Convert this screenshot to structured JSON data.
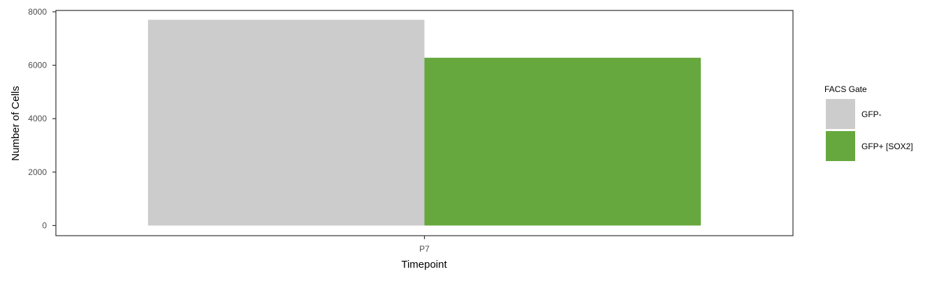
{
  "chart_data": {
    "type": "bar",
    "categories": [
      "P7"
    ],
    "series": [
      {
        "name": "GFP-",
        "values": [
          7700
        ],
        "color": "#cccccc"
      },
      {
        "name": "GFP+ [SOX2]",
        "values": [
          6280
        ],
        "color": "#66a83e"
      }
    ],
    "xlabel": "Timepoint",
    "ylabel": "Number of Cells",
    "ylim": [
      -380,
      8050
    ],
    "yticks": [
      0,
      2000,
      4000,
      6000,
      8000
    ],
    "grid": false,
    "legend": {
      "title": "FACS Gate",
      "placement": "right"
    }
  }
}
